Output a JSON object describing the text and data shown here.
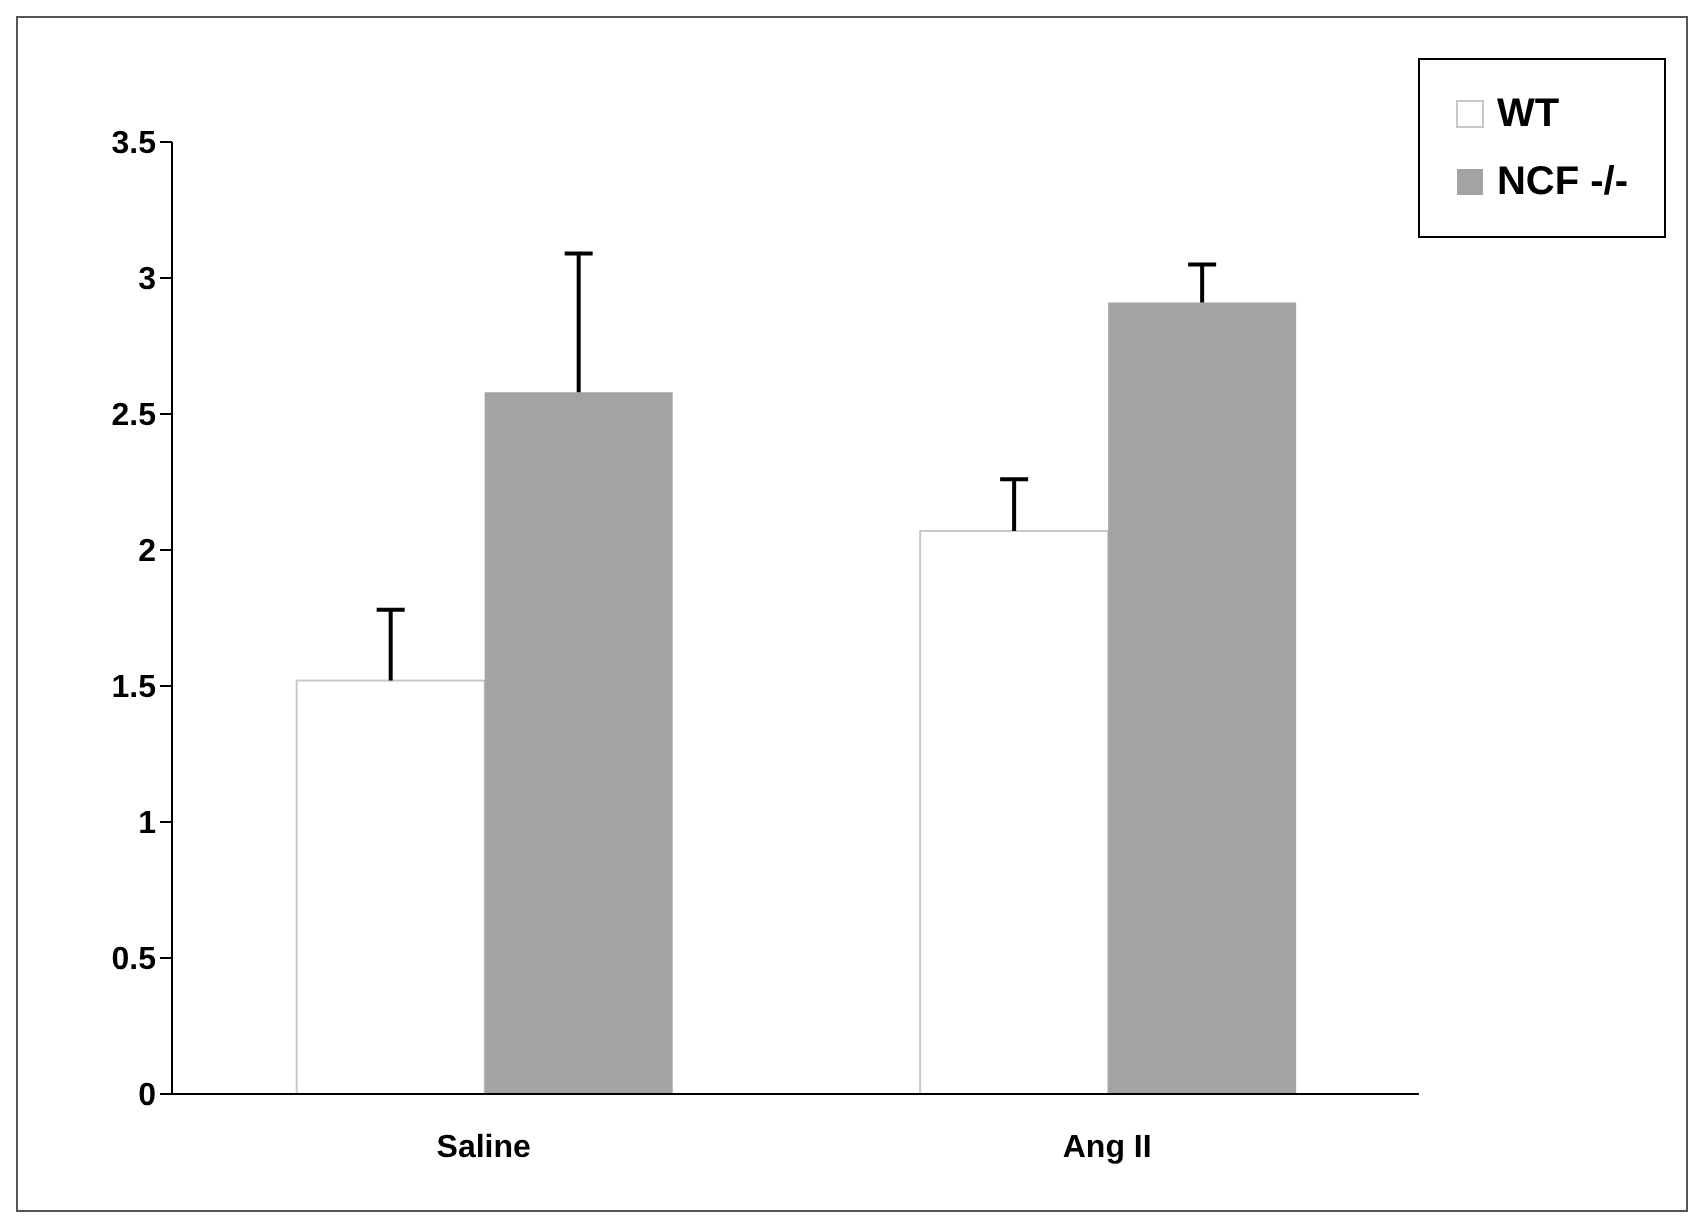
{
  "chart_data": {
    "type": "bar",
    "categories": [
      "Saline",
      "Ang II"
    ],
    "series": [
      {
        "name": "WT",
        "color": "#ffffff",
        "values": [
          1.52,
          2.07
        ],
        "errors": [
          [
            1.52,
            1.78
          ],
          [
            2.07,
            2.26
          ]
        ]
      },
      {
        "name": "NCF -/-",
        "color": "#a3a3a3",
        "values": [
          2.58,
          2.91
        ],
        "errors": [
          [
            2.58,
            3.09
          ],
          [
            2.91,
            3.05
          ]
        ]
      }
    ],
    "ylim": [
      0,
      3.5
    ],
    "yticks": [
      0,
      0.5,
      1,
      1.5,
      2,
      2.5,
      3,
      3.5
    ],
    "grid": false,
    "legend": "top right"
  }
}
